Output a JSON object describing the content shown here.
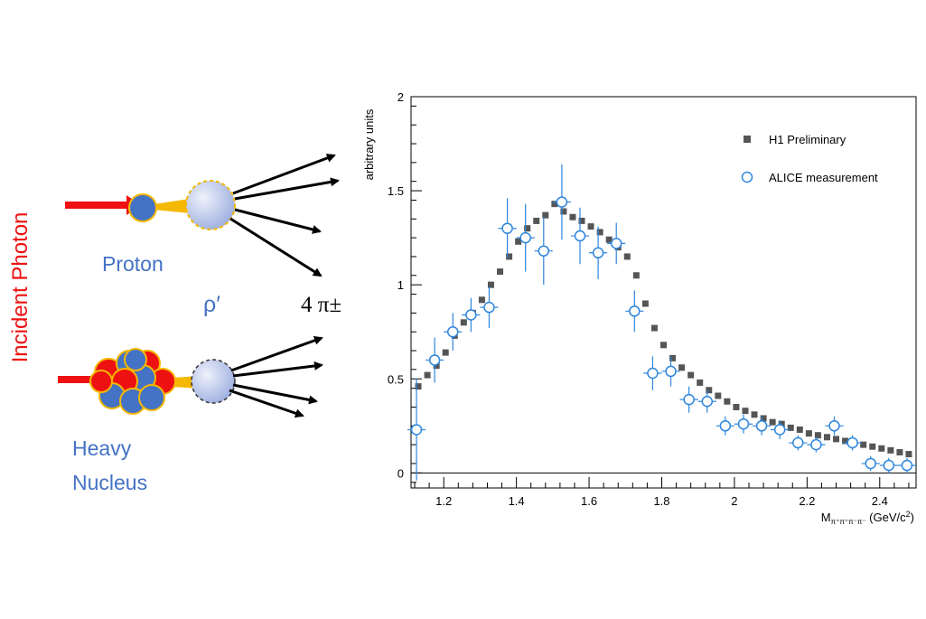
{
  "diagram": {
    "incident_label": "Incident Photon",
    "proton_label": "Proton",
    "rho_label": "ρ′",
    "pions_label": "4 π±",
    "heavy_label_1": "Heavy",
    "heavy_label_2": "Nucleus",
    "colors": {
      "photon": "#ee1111",
      "nucleon_blue": "#4472c4",
      "proton_red": "#ee1111",
      "label_blue": "#4472c4",
      "meson": "#b8c4ea",
      "gold": "#f5b800"
    }
  },
  "chart_data": {
    "type": "scatter",
    "title": "",
    "xlabel": "M_{π+π+π-π-} (GeV/c²)",
    "xlabel_main": "M",
    "xlabel_sub": "π⁺π⁺π⁻π⁻",
    "xlabel_unit": " (GeV/c",
    "xlabel_sup": "2",
    "xlabel_close": ")",
    "ylabel": "arbitrary units",
    "xlim": [
      1.11,
      2.5
    ],
    "ylim": [
      -0.08,
      2.0
    ],
    "xticks": [
      1.2,
      1.4,
      1.6,
      1.8,
      2.0,
      2.2,
      2.4
    ],
    "xtick_labels": [
      "1.2",
      "1.4",
      "1.6",
      "1.8",
      "2",
      "2.2",
      "2.4"
    ],
    "yticks": [
      0,
      0.5,
      1.0,
      1.5,
      2.0
    ],
    "ytick_labels": [
      "0",
      "0.5",
      "1",
      "1.5",
      "2"
    ],
    "legend_position": "top-right",
    "series": [
      {
        "name": "H1 Preliminary",
        "marker": "filled-square",
        "color": "#555555",
        "x": [
          1.13,
          1.155,
          1.18,
          1.205,
          1.23,
          1.255,
          1.28,
          1.305,
          1.33,
          1.355,
          1.38,
          1.405,
          1.43,
          1.455,
          1.48,
          1.505,
          1.53,
          1.555,
          1.58,
          1.605,
          1.63,
          1.655,
          1.68,
          1.705,
          1.73,
          1.755,
          1.78,
          1.805,
          1.83,
          1.855,
          1.88,
          1.905,
          1.93,
          1.955,
          1.98,
          2.005,
          2.03,
          2.055,
          2.08,
          2.105,
          2.13,
          2.155,
          2.18,
          2.205,
          2.23,
          2.255,
          2.28,
          2.305,
          2.33,
          2.355,
          2.38,
          2.405,
          2.43,
          2.455,
          2.48
        ],
        "y": [
          0.46,
          0.52,
          0.57,
          0.64,
          0.73,
          0.8,
          0.85,
          0.92,
          1.0,
          1.07,
          1.15,
          1.23,
          1.3,
          1.34,
          1.37,
          1.43,
          1.39,
          1.36,
          1.34,
          1.31,
          1.28,
          1.24,
          1.2,
          1.15,
          1.05,
          0.9,
          0.77,
          0.68,
          0.61,
          0.56,
          0.52,
          0.48,
          0.44,
          0.41,
          0.38,
          0.35,
          0.33,
          0.31,
          0.29,
          0.27,
          0.26,
          0.24,
          0.23,
          0.21,
          0.2,
          0.19,
          0.18,
          0.17,
          0.16,
          0.15,
          0.14,
          0.13,
          0.12,
          0.11,
          0.1
        ]
      },
      {
        "name": "ALICE measurement",
        "marker": "open-circle",
        "color": "#2e86de",
        "x": [
          1.125,
          1.175,
          1.225,
          1.275,
          1.325,
          1.375,
          1.425,
          1.475,
          1.525,
          1.575,
          1.625,
          1.675,
          1.725,
          1.775,
          1.825,
          1.875,
          1.925,
          1.975,
          2.025,
          2.075,
          2.125,
          2.175,
          2.225,
          2.275,
          2.325,
          2.375,
          2.425,
          2.475
        ],
        "y": [
          0.23,
          0.6,
          0.75,
          0.84,
          0.88,
          1.3,
          1.25,
          1.18,
          1.44,
          1.26,
          1.17,
          1.22,
          0.86,
          0.53,
          0.54,
          0.39,
          0.38,
          0.25,
          0.26,
          0.25,
          0.23,
          0.16,
          0.15,
          0.25,
          0.16,
          0.05,
          0.04,
          0.04
        ],
        "yerr": [
          0.27,
          0.12,
          0.1,
          0.09,
          0.11,
          0.16,
          0.18,
          0.18,
          0.2,
          0.15,
          0.14,
          0.11,
          0.11,
          0.09,
          0.08,
          0.07,
          0.06,
          0.05,
          0.05,
          0.05,
          0.05,
          0.04,
          0.04,
          0.05,
          0.04,
          0.04,
          0.04,
          0.04
        ],
        "xerr": 0.025
      }
    ]
  }
}
